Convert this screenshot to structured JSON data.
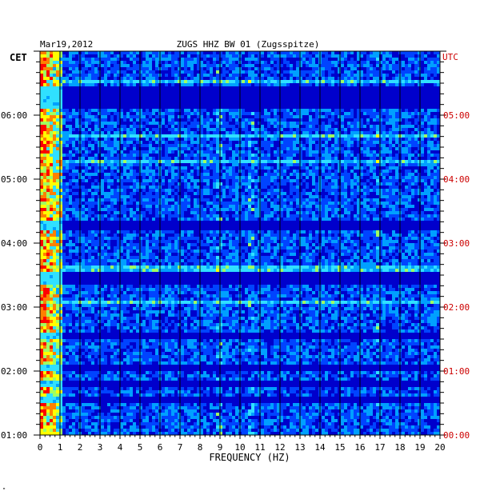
{
  "chart_data": {
    "type": "heatmap",
    "date": "Mar19,2012",
    "title": "ZUGS HHZ BW 01 (Zugsspitze)",
    "xlabel": "FREQUENCY (HZ)",
    "xlim": [
      0,
      20
    ],
    "x_ticks": [
      "0",
      "1",
      "2",
      "3",
      "4",
      "5",
      "6",
      "7",
      "8",
      "9",
      "10",
      "11",
      "12",
      "13",
      "14",
      "15",
      "16",
      "17",
      "18",
      "19",
      "20"
    ],
    "left_axis_label": "CET",
    "right_axis_label": "UTC",
    "left_ticks": [
      "06:00",
      "05:00",
      "04:00",
      "03:00",
      "02:00",
      "01:00"
    ],
    "right_ticks": [
      "05:00",
      "04:00",
      "03:00",
      "02:00",
      "01:00",
      "00:00"
    ],
    "time_range_utc": [
      "00:00",
      "05:53"
    ],
    "colormap": [
      "#00007f",
      "#0000cc",
      "#0044ff",
      "#00a0ff",
      "#30e0ff",
      "#a0ff60",
      "#ffff00",
      "#ff8000",
      "#ff0000"
    ],
    "low_frequency_energy_band_hz": [
      0,
      1
    ],
    "horizontal_band_times_utc": [
      "05:25",
      "05:17",
      "03:18",
      "02:32",
      "02:25",
      "01:35",
      "01:05",
      "00:50",
      "00:35"
    ],
    "vertical_line_freqs_hz": [
      8.85,
      10.5,
      16.8
    ],
    "grid": true
  },
  "colors": {
    "left_axis": "#000000",
    "right_axis": "#cc0000",
    "gridline": "#000000"
  },
  "footer_mark": "\""
}
